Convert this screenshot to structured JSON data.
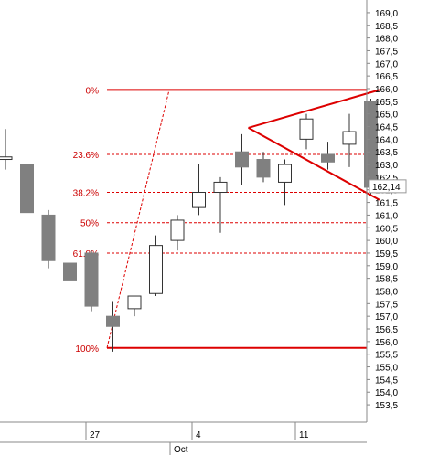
{
  "chart_data": {
    "type": "candlestick",
    "ylim": [
      153.0,
      169.5
    ],
    "y_ticks": [
      "153,5",
      "154,0",
      "154,5",
      "155,0",
      "155,5",
      "156,0",
      "156,5",
      "157,0",
      "157,5",
      "158,0",
      "158,5",
      "159,0",
      "159,5",
      "160,0",
      "160,5",
      "161,0",
      "161,5",
      "162,0",
      "162,5",
      "163,0",
      "163,5",
      "164,0",
      "164,5",
      "165,0",
      "165,5",
      "166,0",
      "166,5",
      "167,0",
      "167,5",
      "168,0",
      "168,5",
      "169,0"
    ],
    "x_labels": [
      "27",
      "4",
      "11"
    ],
    "month_labels": [
      "Oct"
    ],
    "last_price_label": "162,14",
    "candles": [
      {
        "open": 163.2,
        "high": 164.4,
        "low": 162.8,
        "close": 163.3
      },
      {
        "open": 163.0,
        "high": 163.4,
        "low": 160.8,
        "close": 161.1
      },
      {
        "open": 161.0,
        "high": 161.2,
        "low": 158.9,
        "close": 159.2
      },
      {
        "open": 159.1,
        "high": 159.3,
        "low": 158.0,
        "close": 158.4
      },
      {
        "open": 159.5,
        "high": 159.6,
        "low": 157.2,
        "close": 157.4
      },
      {
        "open": 157.0,
        "high": 157.6,
        "low": 155.6,
        "close": 156.6
      },
      {
        "open": 157.3,
        "high": 157.8,
        "low": 157.0,
        "close": 157.8
      },
      {
        "open": 157.9,
        "high": 160.2,
        "low": 157.8,
        "close": 159.8
      },
      {
        "open": 160.0,
        "high": 161.0,
        "low": 159.6,
        "close": 160.8
      },
      {
        "open": 161.3,
        "high": 163.0,
        "low": 161.0,
        "close": 161.9
      },
      {
        "open": 161.9,
        "high": 162.5,
        "low": 160.3,
        "close": 162.3
      },
      {
        "open": 163.5,
        "high": 164.2,
        "low": 162.2,
        "close": 162.9
      },
      {
        "open": 163.2,
        "high": 163.5,
        "low": 162.3,
        "close": 162.5
      },
      {
        "open": 162.3,
        "high": 163.2,
        "low": 161.4,
        "close": 163.0
      },
      {
        "open": 164.0,
        "high": 165.0,
        "low": 163.6,
        "close": 164.8
      },
      {
        "open": 163.4,
        "high": 163.9,
        "low": 162.8,
        "close": 163.1
      },
      {
        "open": 163.8,
        "high": 165.0,
        "low": 162.9,
        "close": 164.3
      },
      {
        "open": 165.5,
        "high": 165.6,
        "low": 161.8,
        "close": 162.1
      }
    ],
    "fibonacci": {
      "labels": [
        "0%",
        "23.6%",
        "38.2%",
        "50%",
        "61.8%",
        "100%"
      ],
      "values": [
        165.95,
        163.4,
        161.9,
        160.7,
        159.5,
        155.75
      ]
    },
    "triangle": {
      "apex": {
        "candle": 11.3,
        "price": 164.45
      },
      "upper": {
        "candle": 17.4,
        "price": 165.95
      },
      "lower": {
        "candle": 17.4,
        "price": 161.6
      }
    }
  },
  "colors": {
    "fib_line": "#dd0000",
    "bear_fill": "#808080",
    "bull_fill": "#ffffff",
    "candle_stroke": "#333333",
    "axis": "#888888"
  }
}
